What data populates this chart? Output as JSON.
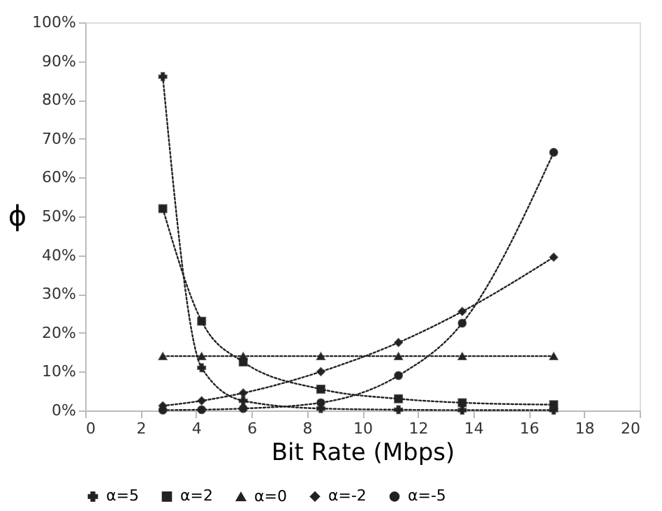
{
  "chart_data": {
    "type": "line",
    "xlabel": "Bit Rate (Mbps)",
    "ylabel": "ϕ",
    "x": [
      2.8,
      4.2,
      5.7,
      8.5,
      11.3,
      13.6,
      16.9
    ],
    "xlim": [
      0,
      20
    ],
    "xticks": [
      0,
      2,
      4,
      6,
      8,
      10,
      12,
      14,
      16,
      18,
      20
    ],
    "ylim": [
      0,
      100
    ],
    "yticks": [
      {
        "value": 0,
        "label": "0%"
      },
      {
        "value": 10,
        "label": "10%"
      },
      {
        "value": 20,
        "label": "20%"
      },
      {
        "value": 30,
        "label": "30%"
      },
      {
        "value": 40,
        "label": "40%"
      },
      {
        "value": 50,
        "label": "50%"
      },
      {
        "value": 60,
        "label": "60%"
      },
      {
        "value": 70,
        "label": "70%"
      },
      {
        "value": 80,
        "label": "80%"
      },
      {
        "value": 90,
        "label": "90%"
      },
      {
        "value": 100,
        "label": "100%"
      }
    ],
    "grid": false,
    "legend": "bottom",
    "line_style": "dotted",
    "series": [
      {
        "name": "α=5",
        "color": "#222222",
        "marker": "cross",
        "values": [
          86,
          11,
          2.5,
          0.5,
          0.2,
          0.1,
          0.1
        ]
      },
      {
        "name": "α=2",
        "color": "#222222",
        "marker": "square",
        "values": [
          52,
          23,
          12.5,
          5.5,
          3,
          2,
          1.5
        ]
      },
      {
        "name": "α=0",
        "color": "#222222",
        "marker": "triangle",
        "values": [
          14,
          14,
          14,
          14,
          14,
          14,
          14
        ]
      },
      {
        "name": "α=-2",
        "color": "#222222",
        "marker": "diamond",
        "values": [
          1.2,
          2.5,
          4.5,
          10,
          17.5,
          25.5,
          39.5
        ]
      },
      {
        "name": "α=-5",
        "color": "#222222",
        "marker": "circle",
        "values": [
          0.1,
          0.2,
          0.5,
          2,
          9,
          22.5,
          66.5
        ]
      }
    ]
  }
}
